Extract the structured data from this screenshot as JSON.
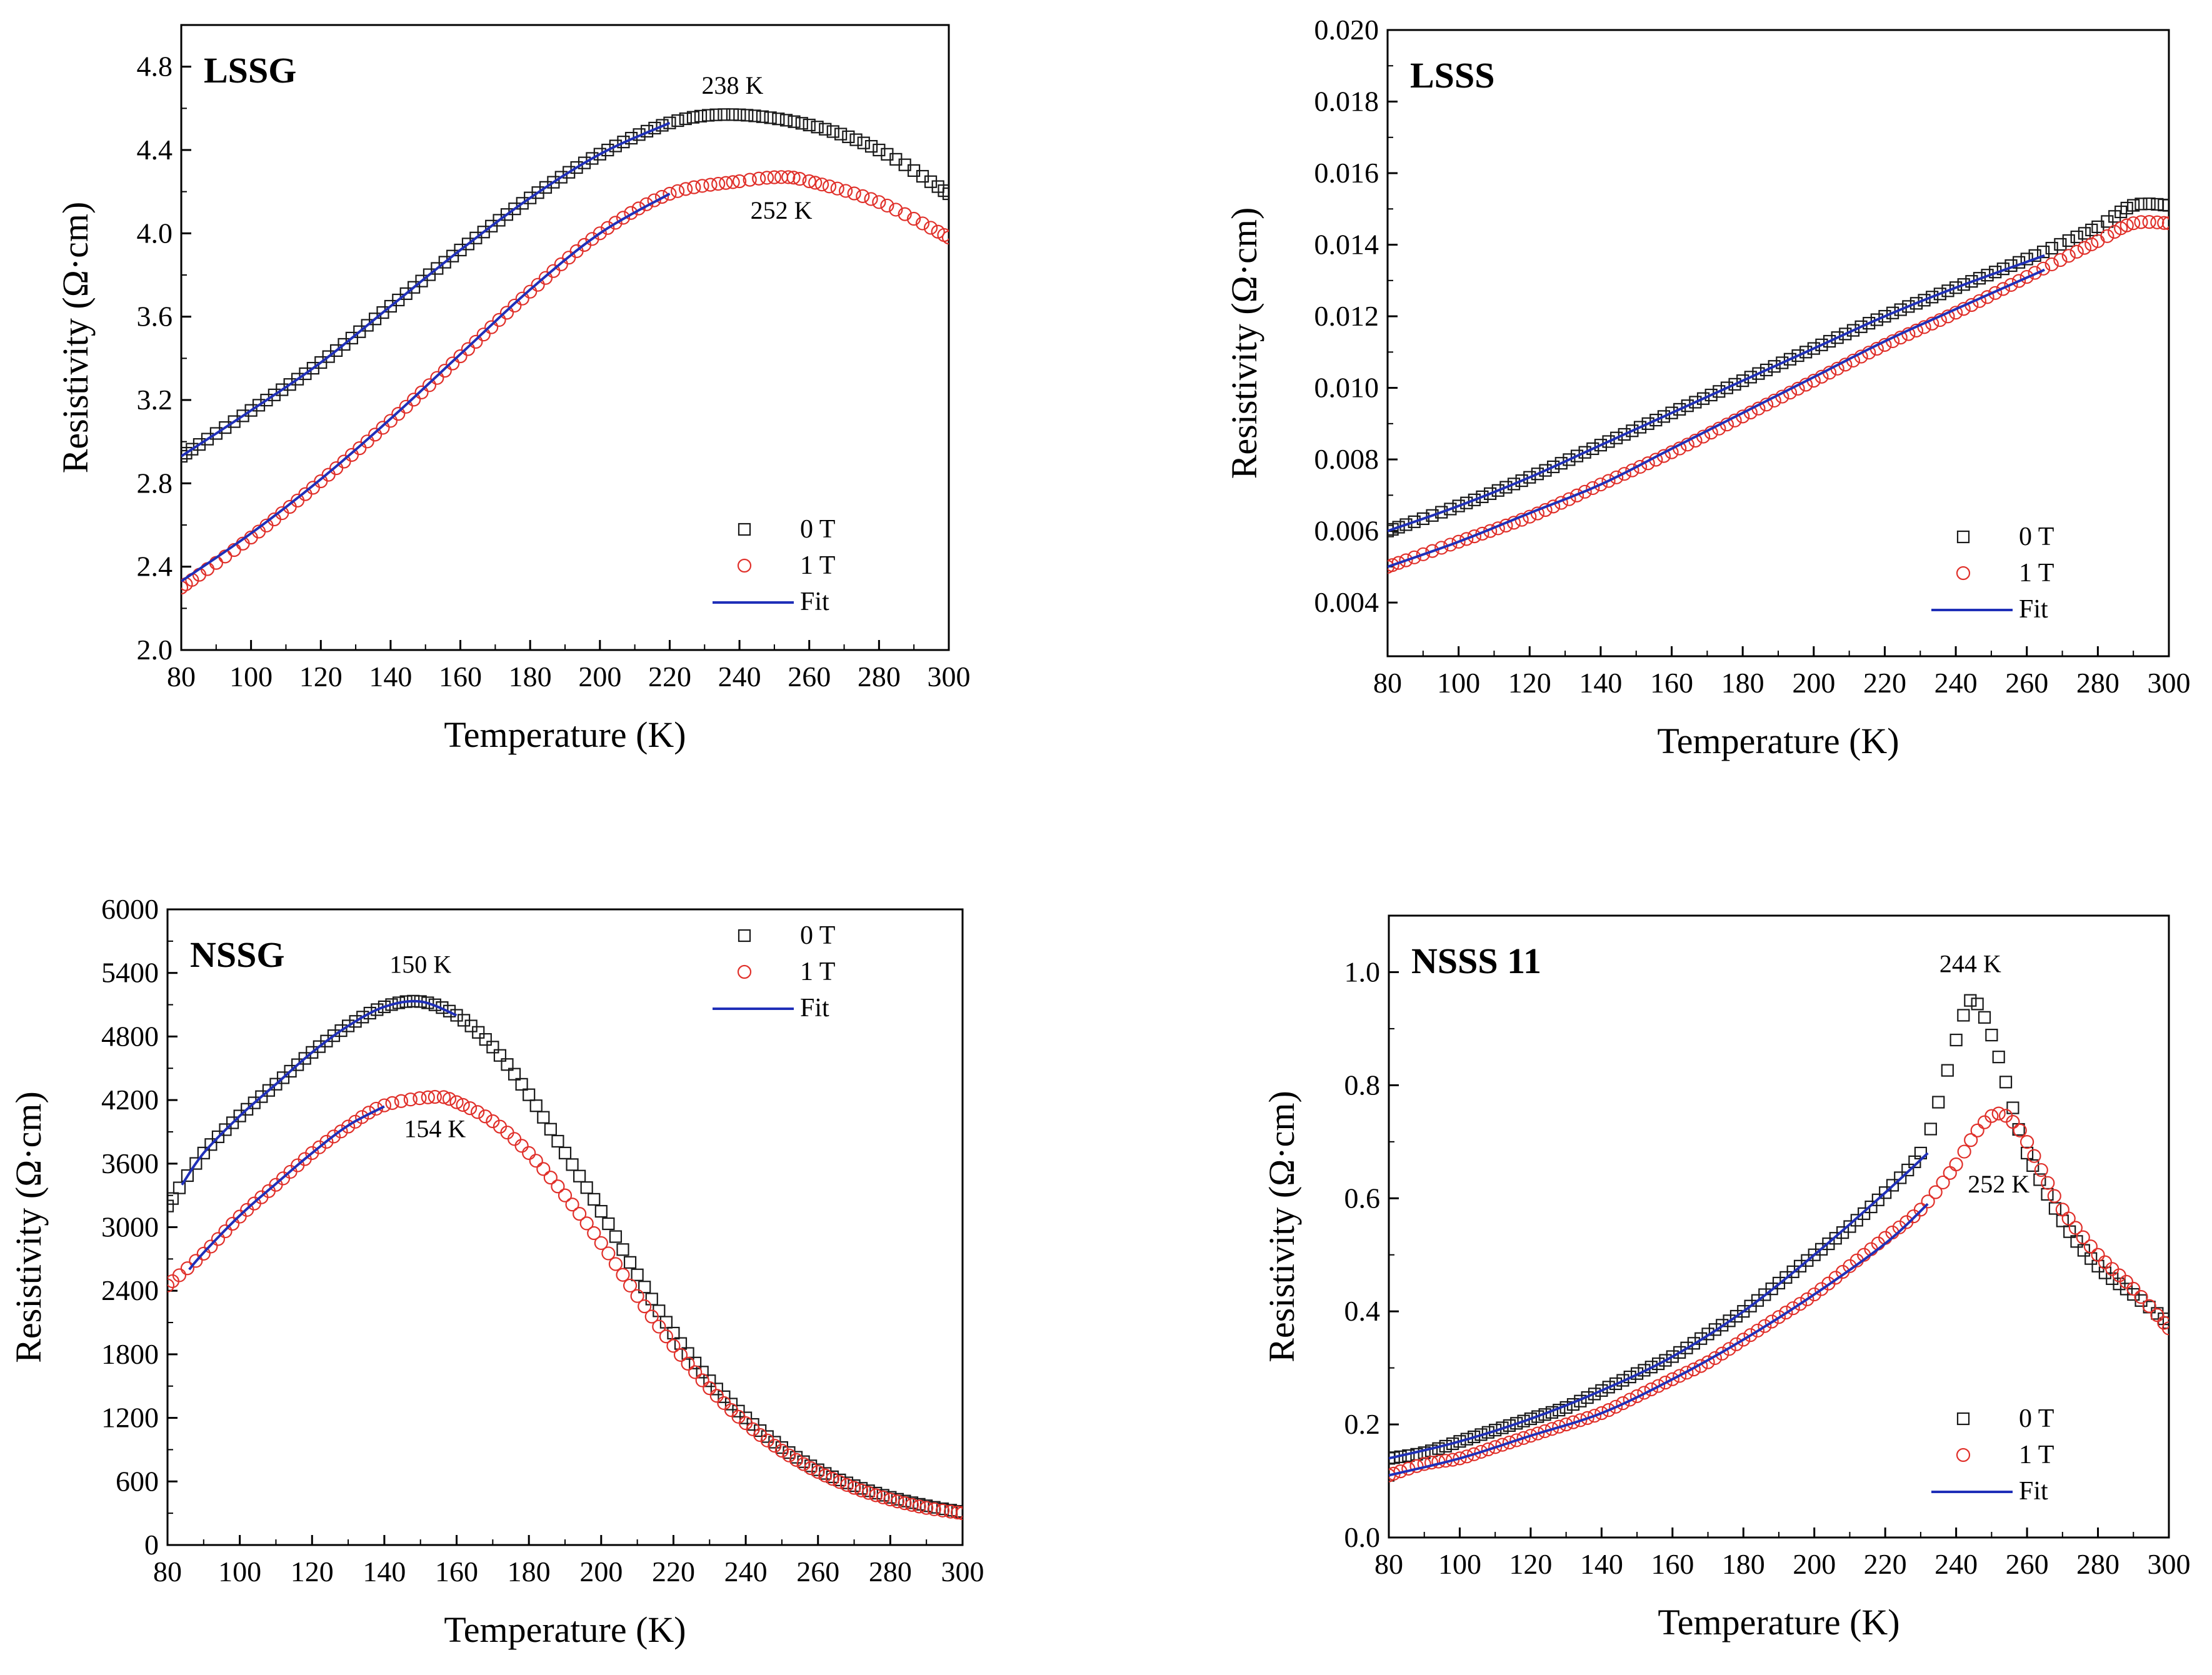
{
  "colors": {
    "zero_field": "#1a1a1a",
    "one_tesla": "#e0302a",
    "fit": "#1f2fb8",
    "axis": "#000000"
  },
  "chart_data": [
    {
      "type": "scatter",
      "panel": "LSSG",
      "title": "LSSG",
      "xlabel": "Temperature (K)",
      "ylabel": "Resistivity (Ω·cm)",
      "xlim": [
        80,
        300
      ],
      "ylim": [
        2.0,
        5.0
      ],
      "xticks": [
        80,
        100,
        120,
        140,
        160,
        180,
        200,
        220,
        240,
        260,
        280,
        300
      ],
      "yticks": [
        2.0,
        2.4,
        2.8,
        3.2,
        3.6,
        4.0,
        4.4,
        4.8
      ],
      "ytick_labels": [
        "2.0",
        "2.4",
        "2.8",
        "3.2",
        "3.6",
        "4.0",
        "4.4",
        "4.8"
      ],
      "legend": {
        "position": "bottom-right",
        "entries": [
          "0 T",
          "1 T",
          "Fit"
        ]
      },
      "series": [
        {
          "name": "0 T",
          "marker": "square",
          "x": [
            80,
            100,
            120,
            140,
            160,
            180,
            200,
            220,
            238,
            260,
            280,
            300
          ],
          "y": [
            2.93,
            3.15,
            3.38,
            3.65,
            3.92,
            4.17,
            4.38,
            4.53,
            4.57,
            4.52,
            4.4,
            4.19
          ]
        },
        {
          "name": "1 T",
          "marker": "circle",
          "x": [
            80,
            100,
            120,
            140,
            160,
            180,
            200,
            220,
            240,
            252,
            260,
            280,
            300
          ],
          "y": [
            2.3,
            2.54,
            2.81,
            3.1,
            3.41,
            3.72,
            4.0,
            4.19,
            4.25,
            4.27,
            4.25,
            4.15,
            3.98
          ]
        },
        {
          "name": "Fit (0 T)",
          "marker": "line",
          "x": [
            80,
            100,
            120,
            140,
            160,
            180,
            200,
            220
          ],
          "y": [
            2.93,
            3.15,
            3.38,
            3.65,
            3.92,
            4.17,
            4.38,
            4.53
          ]
        },
        {
          "name": "Fit (1 T)",
          "marker": "line",
          "x": [
            80,
            100,
            120,
            140,
            160,
            180,
            200,
            220
          ],
          "y": [
            2.33,
            2.56,
            2.82,
            3.11,
            3.42,
            3.73,
            4.0,
            4.19
          ]
        }
      ],
      "annotations": [
        {
          "text": "238 K",
          "x": 238,
          "y": 4.67
        },
        {
          "text": "252 K",
          "x": 252,
          "y": 4.07
        }
      ]
    },
    {
      "type": "scatter",
      "panel": "LSSS",
      "title": "LSSS",
      "xlabel": "Temperature (K)",
      "ylabel": "Resistivity (Ω·cm)",
      "xlim": [
        80,
        300
      ],
      "ylim": [
        0.0025,
        0.02
      ],
      "xticks": [
        80,
        100,
        120,
        140,
        160,
        180,
        200,
        220,
        240,
        260,
        280,
        300
      ],
      "yticks": [
        0.004,
        0.006,
        0.008,
        0.01,
        0.012,
        0.014,
        0.016,
        0.018,
        0.02
      ],
      "ytick_labels": [
        "0.004",
        "0.006",
        "0.008",
        "0.010",
        "0.012",
        "0.014",
        "0.016",
        "0.018",
        "0.020"
      ],
      "legend": {
        "position": "bottom-right",
        "entries": [
          "0 T",
          "1 T",
          "Fit"
        ]
      },
      "series": [
        {
          "name": "0 T",
          "marker": "square",
          "x": [
            80,
            100,
            120,
            140,
            160,
            180,
            200,
            220,
            240,
            260,
            280,
            290,
            300
          ],
          "y": [
            0.006,
            0.0067,
            0.0075,
            0.0084,
            0.0093,
            0.0102,
            0.0111,
            0.012,
            0.0128,
            0.0136,
            0.0145,
            0.0151,
            0.0151
          ]
        },
        {
          "name": "1 T",
          "marker": "circle",
          "x": [
            80,
            100,
            120,
            140,
            160,
            180,
            200,
            220,
            240,
            260,
            280,
            290,
            300
          ],
          "y": [
            0.005,
            0.0057,
            0.0064,
            0.0073,
            0.0082,
            0.0092,
            0.0102,
            0.0112,
            0.0121,
            0.0131,
            0.0141,
            0.0146,
            0.0146
          ]
        },
        {
          "name": "Fit (0 T)",
          "marker": "line",
          "x": [
            80,
            100,
            120,
            140,
            160,
            180,
            200,
            220,
            240,
            265
          ],
          "y": [
            0.006,
            0.0067,
            0.0075,
            0.0084,
            0.0093,
            0.0102,
            0.0111,
            0.012,
            0.0128,
            0.0137
          ]
        },
        {
          "name": "Fit (1 T)",
          "marker": "line",
          "x": [
            80,
            100,
            120,
            140,
            160,
            180,
            200,
            220,
            240,
            265
          ],
          "y": [
            0.005,
            0.0057,
            0.0065,
            0.0073,
            0.0083,
            0.0093,
            0.0103,
            0.0113,
            0.0122,
            0.0133
          ]
        }
      ],
      "annotations": []
    },
    {
      "type": "scatter",
      "panel": "NSSG",
      "title": "NSSG",
      "xlabel": "Temperature (K)",
      "ylabel": "Resistivity (Ω·cm)",
      "xlim": [
        80,
        300
      ],
      "ylim": [
        0,
        6000
      ],
      "xticks": [
        80,
        100,
        120,
        140,
        160,
        180,
        200,
        220,
        240,
        260,
        280,
        300
      ],
      "yticks": [
        0,
        600,
        1200,
        1800,
        2400,
        3000,
        3600,
        4200,
        4800,
        5400,
        6000
      ],
      "ytick_labels": [
        "0",
        "600",
        "1200",
        "1800",
        "2400",
        "3000",
        "3600",
        "4200",
        "4800",
        "5400",
        "6000"
      ],
      "legend": {
        "position": "top-right",
        "entries": [
          "0 T",
          "1 T",
          "Fit"
        ]
      },
      "series": [
        {
          "name": "0 T",
          "marker": "square",
          "x": [
            80,
            90,
            100,
            110,
            120,
            130,
            140,
            150,
            160,
            170,
            180,
            190,
            200,
            210,
            220,
            230,
            240,
            250,
            260,
            270,
            280,
            290,
            300
          ],
          "y": [
            3200,
            3700,
            4050,
            4350,
            4650,
            4900,
            5080,
            5130,
            5000,
            4700,
            4250,
            3700,
            3150,
            2550,
            2000,
            1550,
            1200,
            920,
            710,
            560,
            450,
            370,
            310
          ]
        },
        {
          "name": "1 T",
          "marker": "circle",
          "x": [
            80,
            90,
            100,
            110,
            120,
            130,
            140,
            154,
            160,
            170,
            180,
            190,
            200,
            210,
            220,
            230,
            240,
            250,
            260,
            270,
            280,
            290,
            300
          ],
          "y": [
            2450,
            2750,
            3100,
            3400,
            3700,
            3950,
            4150,
            4230,
            4180,
            4000,
            3700,
            3300,
            2850,
            2350,
            1880,
            1480,
            1150,
            890,
            690,
            540,
            430,
            350,
            300
          ]
        },
        {
          "name": "Fit (0 T)",
          "marker": "line",
          "x": [
            84,
            90,
            100,
            110,
            120,
            130,
            140,
            150,
            160
          ],
          "y": [
            3400,
            3700,
            4050,
            4350,
            4650,
            4900,
            5080,
            5130,
            5000
          ]
        },
        {
          "name": "Fit (1 T)",
          "marker": "line",
          "x": [
            86,
            90,
            100,
            110,
            120,
            130,
            140
          ],
          "y": [
            2600,
            2760,
            3110,
            3410,
            3700,
            3960,
            4140
          ]
        }
      ],
      "annotations": [
        {
          "text": "150 K",
          "x": 150,
          "y": 5400
        },
        {
          "text": "154 K",
          "x": 154,
          "y": 3850
        }
      ]
    },
    {
      "type": "scatter",
      "panel": "NSSS 11",
      "title": "NSSS 11",
      "xlabel": "Temperature (K)",
      "ylabel": "Resistivity (Ω·cm)",
      "xlim": [
        80,
        300
      ],
      "ylim": [
        0.0,
        1.1
      ],
      "xticks": [
        80,
        100,
        120,
        140,
        160,
        180,
        200,
        220,
        240,
        260,
        280,
        300
      ],
      "yticks": [
        0.0,
        0.2,
        0.4,
        0.6,
        0.8,
        1.0
      ],
      "ytick_labels": [
        "0.0",
        "0.2",
        "0.4",
        "0.6",
        "0.8",
        "1.0"
      ],
      "legend": {
        "position": "bottom-right",
        "entries": [
          "0 T",
          "1 T",
          "Fit"
        ]
      },
      "series": [
        {
          "name": "0 T",
          "marker": "square",
          "x": [
            80,
            90,
            100,
            110,
            120,
            130,
            140,
            150,
            160,
            170,
            180,
            190,
            200,
            210,
            220,
            230,
            235,
            240,
            244,
            248,
            252,
            256,
            260,
            270,
            280,
            290,
            300
          ],
          "y": [
            0.14,
            0.15,
            0.17,
            0.19,
            0.21,
            0.23,
            0.26,
            0.29,
            0.32,
            0.36,
            0.4,
            0.45,
            0.5,
            0.55,
            0.61,
            0.68,
            0.77,
            0.88,
            0.95,
            0.92,
            0.85,
            0.76,
            0.68,
            0.56,
            0.48,
            0.43,
            0.38
          ]
        },
        {
          "name": "1 T",
          "marker": "circle",
          "x": [
            80,
            90,
            100,
            110,
            120,
            130,
            140,
            150,
            160,
            170,
            180,
            190,
            200,
            210,
            220,
            230,
            240,
            246,
            252,
            258,
            264,
            270,
            280,
            290,
            300
          ],
          "y": [
            0.11,
            0.13,
            0.14,
            0.16,
            0.18,
            0.2,
            0.22,
            0.25,
            0.28,
            0.31,
            0.35,
            0.39,
            0.43,
            0.48,
            0.53,
            0.58,
            0.66,
            0.72,
            0.75,
            0.72,
            0.65,
            0.58,
            0.5,
            0.44,
            0.37
          ]
        },
        {
          "name": "Fit (0 T)",
          "marker": "line",
          "x": [
            80,
            100,
            120,
            140,
            160,
            180,
            200,
            220,
            232
          ],
          "y": [
            0.14,
            0.17,
            0.21,
            0.26,
            0.32,
            0.4,
            0.5,
            0.61,
            0.68
          ]
        },
        {
          "name": "Fit (1 T)",
          "marker": "line",
          "x": [
            80,
            100,
            120,
            140,
            160,
            180,
            200,
            220,
            232
          ],
          "y": [
            0.11,
            0.14,
            0.18,
            0.22,
            0.28,
            0.35,
            0.43,
            0.52,
            0.59
          ]
        }
      ],
      "annotations": [
        {
          "text": "244 K",
          "x": 244,
          "y": 1.0
        },
        {
          "text": "252 K",
          "x": 252,
          "y": 0.61
        }
      ]
    }
  ]
}
